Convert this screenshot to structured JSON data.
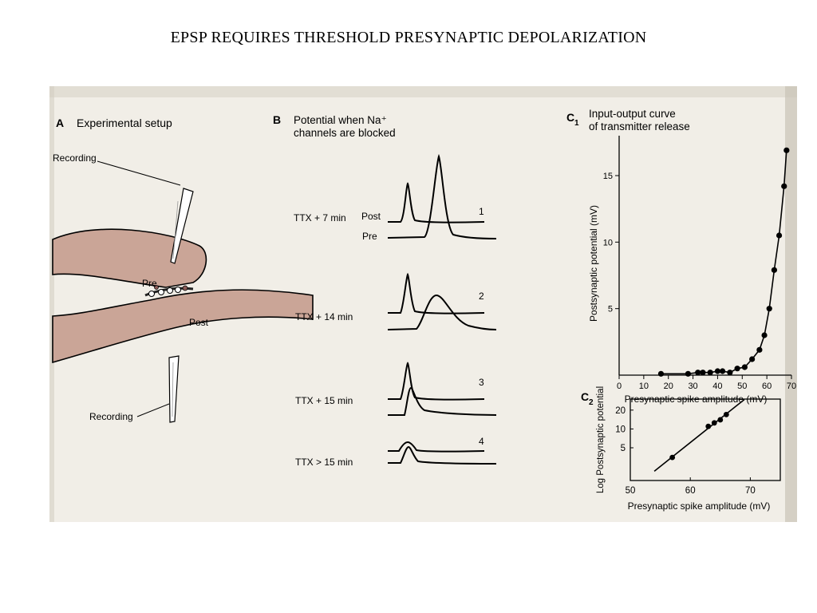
{
  "slide": {
    "title": "EPSP REQUIRES THRESHOLD PRESYNAPTIC DEPOLARIZATION"
  },
  "panelA": {
    "letter": "A",
    "title": "Experimental setup",
    "recording_top": "Recording",
    "recording_bottom": "Recording",
    "pre": "Pre",
    "post": "Post"
  },
  "panelB": {
    "letter": "B",
    "title_line1": "Potential when Na⁺",
    "title_line2": "channels are blocked",
    "post_label": "Post",
    "pre_label": "Pre",
    "traces": [
      {
        "number": "1",
        "condition": "TTX + 7 min"
      },
      {
        "number": "2",
        "condition": "TTX + 14 min"
      },
      {
        "number": "3",
        "condition": "TTX + 15 min"
      },
      {
        "number": "4",
        "condition": "TTX > 15 min"
      }
    ]
  },
  "panelC1": {
    "letter": "C",
    "subscript": "1",
    "title_line1": "Input-output curve",
    "title_line2": "of transmitter release"
  },
  "panelC2": {
    "letter": "C",
    "subscript": "2"
  },
  "chart_data": [
    {
      "type": "scatter",
      "xlabel": "Presynaptic spike amplitude (mV)",
      "ylabel": "Postsynaptic potential (mV)",
      "xlim": [
        0,
        70
      ],
      "ylim": [
        0,
        18
      ],
      "xticks": [
        "0",
        "10",
        "20",
        "30",
        "40",
        "50",
        "60",
        "70"
      ],
      "yticks": [
        "5",
        "10",
        "15"
      ],
      "series": [
        {
          "x": [
            17,
            28,
            32,
            34,
            37,
            40,
            42,
            45,
            48,
            51,
            54,
            57,
            59,
            61,
            63,
            65,
            67,
            68
          ],
          "y": [
            0.1,
            0.1,
            0.2,
            0.2,
            0.2,
            0.3,
            0.3,
            0.2,
            0.5,
            0.6,
            1.2,
            1.9,
            3.0,
            5.0,
            7.9,
            10.5,
            14.2,
            16.9
          ]
        }
      ],
      "fit_curve": true
    },
    {
      "type": "scatter",
      "xlabel": "Presynaptic spike amplitude (mV)",
      "ylabel": "Log Postsynaptic potential",
      "log_y": true,
      "xlim": [
        50,
        75
      ],
      "ylim": [
        1.5,
        30
      ],
      "xticks": [
        "50",
        "60",
        "70"
      ],
      "yticks": [
        "5",
        "10",
        "20"
      ],
      "series": [
        {
          "x": [
            57,
            63,
            64,
            65,
            66
          ],
          "y": [
            3.5,
            11,
            12.5,
            14,
            17
          ]
        }
      ],
      "fit_line": true
    }
  ]
}
